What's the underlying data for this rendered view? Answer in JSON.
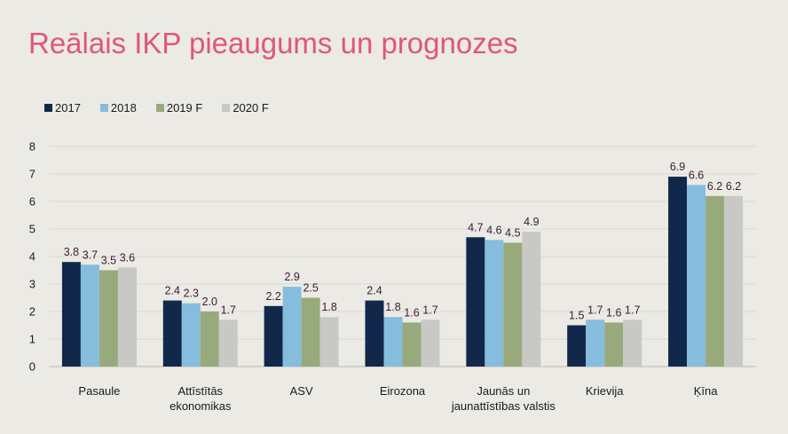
{
  "title": "Reālais IKP pieaugums un prognozes",
  "legend": [
    {
      "label": "2017",
      "color": "#12284a"
    },
    {
      "label": "2018",
      "color": "#86bcdc"
    },
    {
      "label": "2019 F",
      "color": "#98aa7c"
    },
    {
      "label": "2020 F",
      "color": "#c8c8c6"
    }
  ],
  "chart_data": {
    "type": "bar",
    "title": "Reālais IKP pieaugums un prognozes",
    "categories": [
      [
        "Pasaule"
      ],
      [
        "Attīstītās",
        "ekonomikas"
      ],
      [
        "ASV"
      ],
      [
        "Eirozona"
      ],
      [
        "Jaunās un",
        "jaunattīstības valstis"
      ],
      [
        "Krievija"
      ],
      [
        "Ķīna"
      ]
    ],
    "series": [
      {
        "name": "2017",
        "color": "#12284a",
        "values": [
          3.8,
          2.4,
          2.2,
          2.4,
          4.7,
          1.5,
          6.9
        ]
      },
      {
        "name": "2018",
        "color": "#86bcdc",
        "values": [
          3.7,
          2.3,
          2.9,
          1.8,
          4.6,
          1.7,
          6.6
        ]
      },
      {
        "name": "2019 F",
        "color": "#98aa7c",
        "values": [
          3.5,
          2.0,
          2.5,
          1.6,
          4.5,
          1.6,
          6.2
        ]
      },
      {
        "name": "2020 F",
        "color": "#c8c8c6",
        "values": [
          3.6,
          1.7,
          1.8,
          1.7,
          4.9,
          1.7,
          6.2
        ]
      }
    ],
    "ylim": [
      0,
      8
    ],
    "yticks": [
      0,
      1,
      2,
      3,
      4,
      5,
      6,
      7,
      8
    ],
    "grid": true,
    "legend_position": "top-left"
  }
}
